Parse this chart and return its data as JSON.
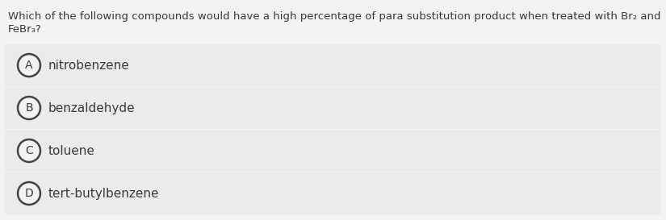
{
  "question_line1": "Which of the following compounds would have a high percentage of para substitution product when treated with Br₂ and",
  "question_line2": "FeBr₃?",
  "options": [
    {
      "letter": "A",
      "text": "nitrobenzene"
    },
    {
      "letter": "B",
      "text": "benzaldehyde"
    },
    {
      "letter": "C",
      "text": "toluene"
    },
    {
      "letter": "D",
      "text": "tert-butylbenzene"
    }
  ],
  "bg_color": "#f2f2f2",
  "option_bg_color": "#ebebeb",
  "text_color": "#3a3a3a",
  "circle_edge_color": "#444444",
  "circle_face_color": "#f2f2f2",
  "question_fontsize": 9.5,
  "option_fontsize": 11,
  "letter_fontsize": 10,
  "fig_width": 8.25,
  "fig_height": 2.73,
  "dpi": 100
}
